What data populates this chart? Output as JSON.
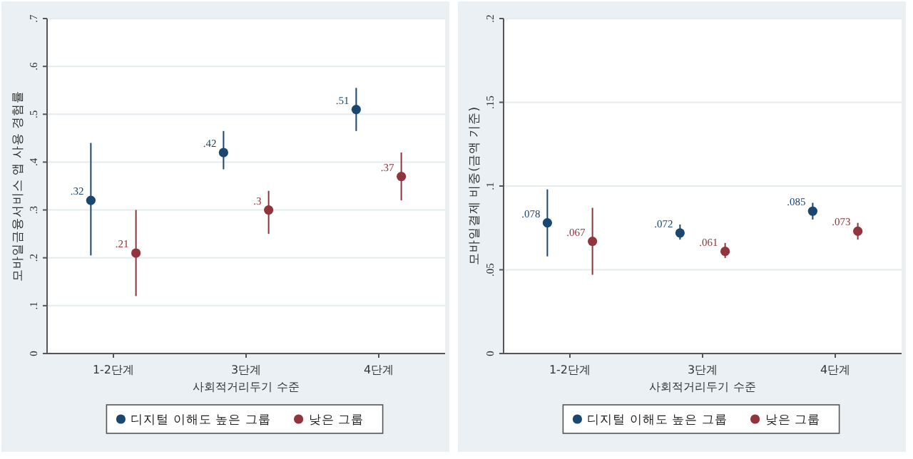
{
  "chart_data": [
    {
      "type": "scatter",
      "xlabel": "사회적거리두기 수준",
      "ylabel": "모바일금융서비스 앱 사용 경험률",
      "categories": [
        "1-2단계",
        "3단계",
        "4단계"
      ],
      "ylim": [
        0,
        0.7
      ],
      "yticks": [
        0,
        {
          "value": 0.1,
          "label": ".1"
        },
        {
          "value": 0.2,
          "label": ".2"
        },
        {
          "value": 0.3,
          "label": ".3"
        },
        {
          "value": 0.4,
          "label": ".4"
        },
        {
          "value": 0.5,
          "label": ".5"
        },
        {
          "value": 0.6,
          "label": ".6"
        },
        {
          "value": 0.7,
          "label": ".7"
        }
      ],
      "grid": "y",
      "legend": "bottom",
      "marker": "circle",
      "series": [
        {
          "name": "디지털 이해도 높은 그룹",
          "color": "#1a476f",
          "values": [
            0.32,
            0.42,
            0.51
          ],
          "errors": [
            [
              0.205,
              0.44
            ],
            [
              0.385,
              0.465
            ],
            [
              0.465,
              0.555
            ]
          ],
          "value_labels": [
            ".32",
            ".42",
            ".51"
          ]
        },
        {
          "name": "낮은 그룹",
          "color": "#90353b",
          "values": [
            0.21,
            0.3,
            0.37
          ],
          "errors": [
            [
              0.12,
              0.3
            ],
            [
              0.25,
              0.34
            ],
            [
              0.32,
              0.42
            ]
          ],
          "value_labels": [
            ".21",
            ".3",
            ".37"
          ]
        }
      ]
    },
    {
      "type": "scatter",
      "xlabel": "사회적거리두기 수준",
      "ylabel": "모바일결제 비중(금액 기준)",
      "categories": [
        "1-2단계",
        "3단계",
        "4단계"
      ],
      "ylim": [
        0,
        0.2
      ],
      "yticks": [
        0,
        {
          "value": 0.05,
          "label": ".05"
        },
        {
          "value": 0.1,
          "label": ".1"
        },
        {
          "value": 0.15,
          "label": ".15"
        },
        {
          "value": 0.2,
          "label": ".2"
        }
      ],
      "grid": "y",
      "legend": "bottom",
      "marker": "circle",
      "series": [
        {
          "name": "디지털 이해도 높은 그룹",
          "color": "#1a476f",
          "values": [
            0.078,
            0.072,
            0.085
          ],
          "errors": [
            [
              0.058,
              0.098
            ],
            [
              0.068,
              0.077
            ],
            [
              0.08,
              0.09
            ]
          ],
          "value_labels": [
            ".078",
            ".072",
            ".085"
          ]
        },
        {
          "name": "낮은 그룹",
          "color": "#90353b",
          "values": [
            0.067,
            0.061,
            0.073
          ],
          "errors": [
            [
              0.047,
              0.087
            ],
            [
              0.057,
              0.066
            ],
            [
              0.068,
              0.078
            ]
          ],
          "value_labels": [
            ".067",
            ".061",
            ".073"
          ]
        }
      ]
    }
  ]
}
